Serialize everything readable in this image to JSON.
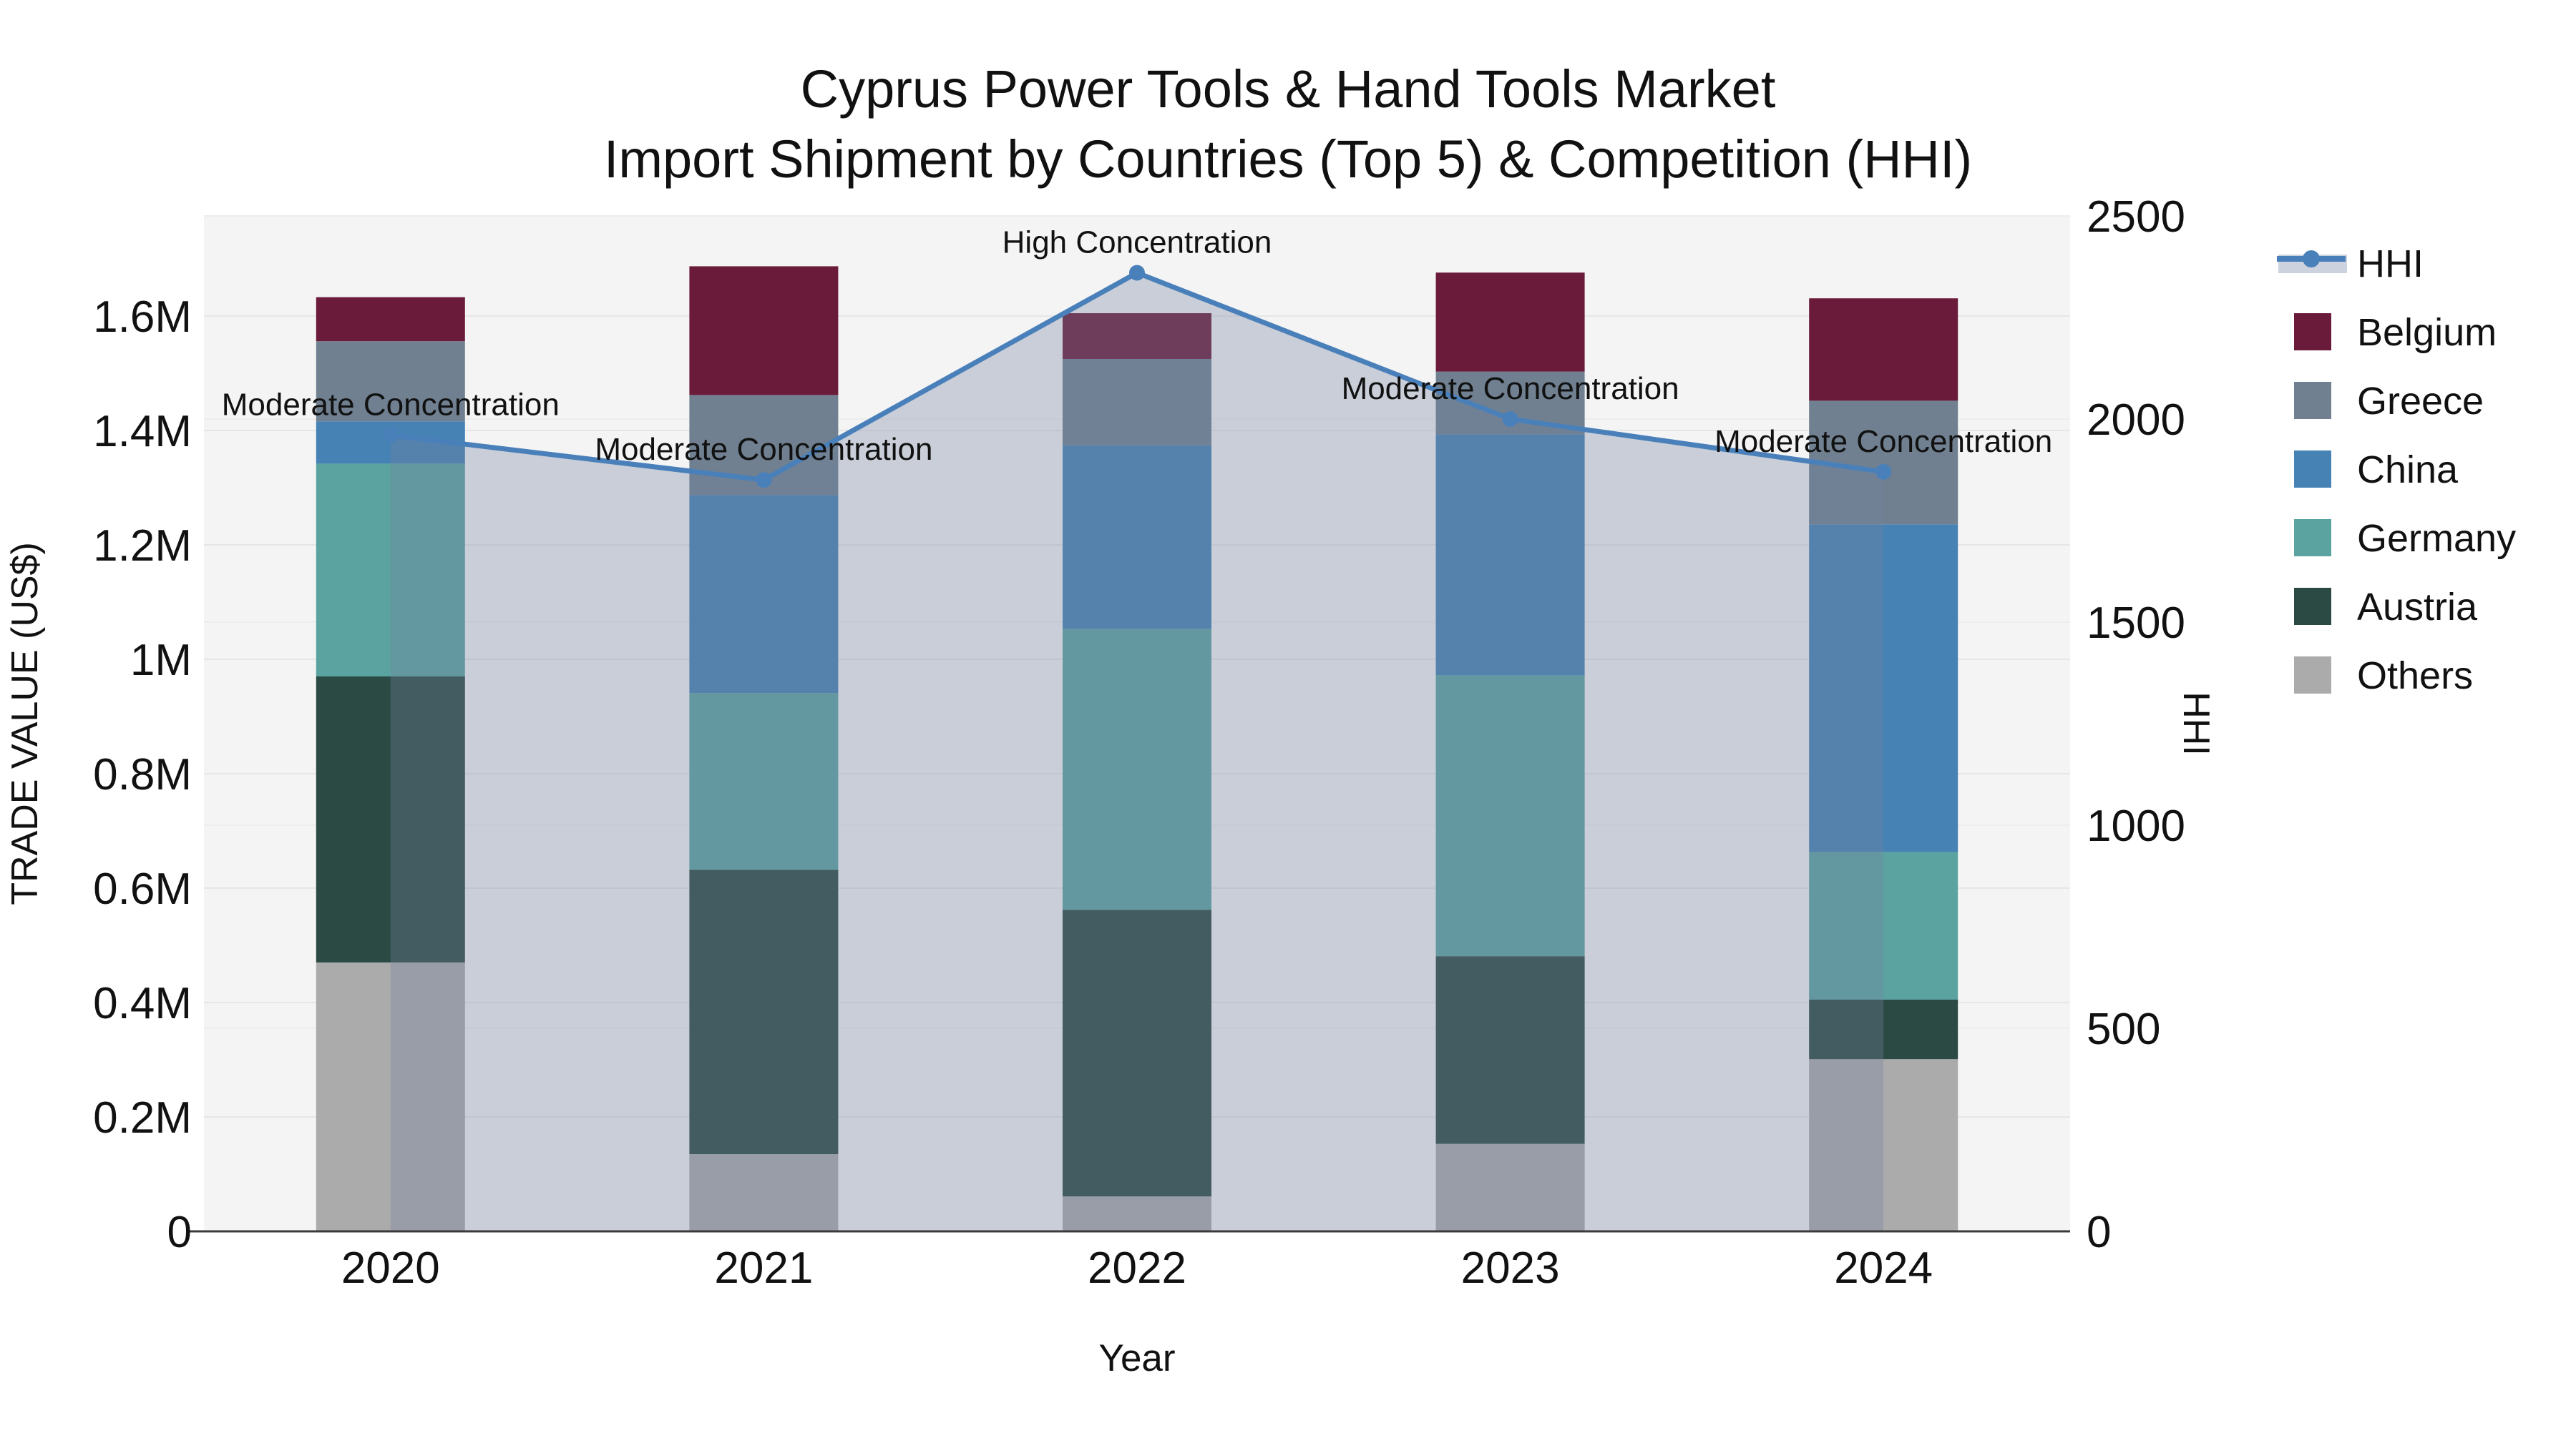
{
  "title": {
    "line1": "Cyprus Power Tools & Hand Tools Market",
    "line2": "Import Shipment by Countries (Top 5) & Competition (HHI)"
  },
  "axes": {
    "y_left": {
      "title": "TRADE VALUE (US$)",
      "tick_labels": [
        "0",
        "0.2M",
        "0.4M",
        "0.6M",
        "0.8M",
        "1M",
        "1.2M",
        "1.4M",
        "1.6M"
      ],
      "tick_values": [
        0,
        200000,
        400000,
        600000,
        800000,
        1000000,
        1200000,
        1400000,
        1600000
      ],
      "range": [
        0,
        1775000
      ]
    },
    "y_right": {
      "title": "HHI",
      "tick_labels": [
        "0",
        "500",
        "1000",
        "1500",
        "2000",
        "2500"
      ],
      "tick_values": [
        0,
        500,
        1000,
        1500,
        2000,
        2500
      ],
      "range": [
        0,
        2500
      ]
    },
    "x": {
      "title": "Year",
      "categories": [
        "2020",
        "2021",
        "2022",
        "2023",
        "2024"
      ]
    }
  },
  "legend": {
    "position": "right",
    "items": [
      {
        "label": "HHI",
        "type": "line",
        "color_key": "hhi_line"
      },
      {
        "label": "Belgium",
        "type": "swatch",
        "color_key": "Belgium"
      },
      {
        "label": "Greece",
        "type": "swatch",
        "color_key": "Greece"
      },
      {
        "label": "China",
        "type": "swatch",
        "color_key": "China"
      },
      {
        "label": "Germany",
        "type": "swatch",
        "color_key": "Germany"
      },
      {
        "label": "Austria",
        "type": "swatch",
        "color_key": "Austria"
      },
      {
        "label": "Others",
        "type": "swatch",
        "color_key": "Others"
      }
    ]
  },
  "chart_data": {
    "type": "bar+line",
    "title": "Cyprus Power Tools & Hand Tools Market — Import Shipment by Countries (Top 5) & Competition (HHI)",
    "xlabel": "Year",
    "ylabel_left": "TRADE VALUE (US$)",
    "ylabel_right": "HHI",
    "categories": [
      "2020",
      "2021",
      "2022",
      "2023",
      "2024"
    ],
    "stack_order_bottom_to_top": [
      "Others",
      "Austria",
      "Germany",
      "China",
      "Greece",
      "Belgium"
    ],
    "series": [
      {
        "name": "Others",
        "values": [
          470000,
          135000,
          61000,
          153000,
          301000
        ]
      },
      {
        "name": "Austria",
        "values": [
          500000,
          497000,
          501000,
          328000,
          104000
        ]
      },
      {
        "name": "Germany",
        "values": [
          372000,
          309000,
          491000,
          491000,
          258000
        ]
      },
      {
        "name": "China",
        "values": [
          74000,
          346000,
          321000,
          421000,
          573000
        ]
      },
      {
        "name": "Greece",
        "values": [
          140000,
          175000,
          151000,
          110000,
          216000
        ]
      },
      {
        "name": "Belgium",
        "values": [
          77000,
          225000,
          80000,
          173000,
          179000
        ]
      }
    ],
    "bar_totals": [
      1633000,
      1687000,
      1605000,
      1676000,
      1631000
    ],
    "hhi_series": {
      "name": "HHI",
      "values": [
        1960,
        1850,
        2360,
        2000,
        1870
      ],
      "axis": "right",
      "fill": "tozero"
    },
    "annotations": [
      {
        "category": "2020",
        "text": "Moderate Concentration"
      },
      {
        "category": "2021",
        "text": "Moderate Concentration"
      },
      {
        "category": "2022",
        "text": "High Concentration"
      },
      {
        "category": "2023",
        "text": "Moderate Concentration"
      },
      {
        "category": "2024",
        "text": "Moderate Concentration"
      }
    ],
    "ylim_left": [
      0,
      1775000
    ],
    "ylim_right": [
      0,
      2500
    ],
    "grid": true,
    "legend_position": "right"
  },
  "colors": {
    "Belgium": "#6b1b3a",
    "Greece": "#708090",
    "China": "#4682b4",
    "Germany": "#5ba3a0",
    "Austria": "#2c4a44",
    "Others": "#ababab",
    "hhi_line": "#4a80ba",
    "hhi_area": "rgba(115,132,160,0.33)",
    "hhi_area_legend": "#ccd3de",
    "plot_bg": "#f4f4f4",
    "grid_left": "#e6e6e6",
    "grid_right": "#ededed",
    "axis_line": "#3a3a3a",
    "text": "#111111"
  }
}
